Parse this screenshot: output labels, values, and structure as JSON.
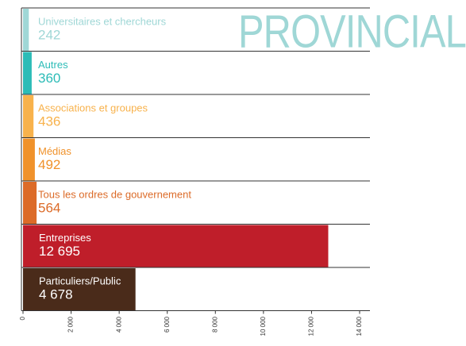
{
  "chart_data": {
    "type": "bar",
    "orientation": "horizontal",
    "title": "PROVINCIAL",
    "categories": [
      "Universitaires et chercheurs",
      "Autres",
      "Associations et groupes",
      "Médias",
      "Tous les ordres de gouvernement",
      "Entreprises",
      "Particuliers/Public"
    ],
    "values": [
      242,
      360,
      436,
      492,
      564,
      12695,
      4678
    ],
    "value_labels": [
      "242",
      "360",
      "436",
      "492",
      "564",
      "12 695",
      "4 678"
    ],
    "colors": [
      "#9fd7d6",
      "#2cbcb7",
      "#f8b24c",
      "#f0922b",
      "#dc6b28",
      "#bf1e2a",
      "#4a2b1a"
    ],
    "xlim": [
      0,
      14000
    ],
    "xticks": [
      0,
      {
        "value": 2000,
        "label": "2 000"
      },
      {
        "value": 4000,
        "label": "4 000"
      },
      {
        "value": 6000,
        "label": "6 000"
      },
      {
        "value": 8000,
        "label": "8 000"
      },
      {
        "value": 10000,
        "label": "10 000"
      },
      {
        "value": 12000,
        "label": "12 000"
      },
      {
        "value": 14000,
        "label": "14 000"
      }
    ],
    "grid": false
  }
}
